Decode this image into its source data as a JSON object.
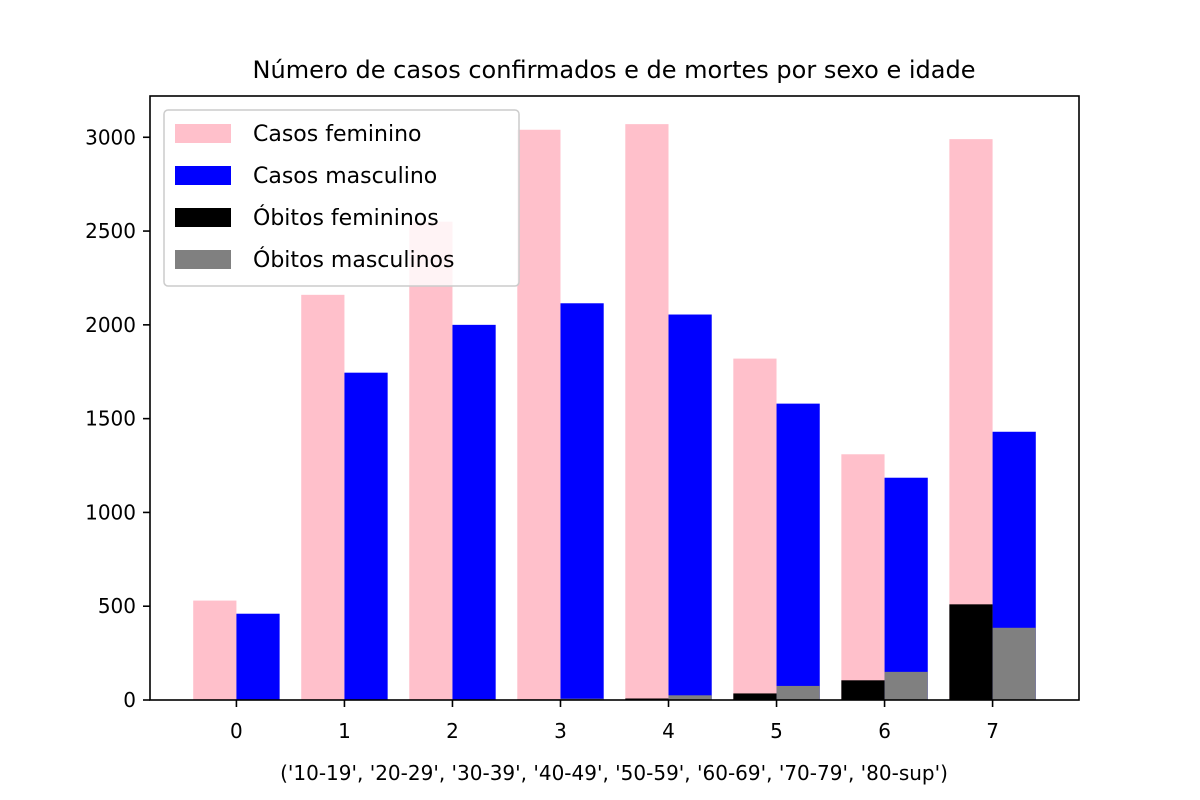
{
  "chart_data": {
    "type": "bar",
    "title": "Número de casos confirmados e de mortes por sexo e idade",
    "xlabel": "('10-19', '20-29', '30-39', '40-49', '50-59', '60-69', '70-79', '80-sup')",
    "ylabel": "",
    "categories": [
      "0",
      "1",
      "2",
      "3",
      "4",
      "5",
      "6",
      "7"
    ],
    "yticks": [
      "0",
      "500",
      "1000",
      "1500",
      "2000",
      "2500",
      "3000"
    ],
    "ytick_values": [
      0,
      500,
      1000,
      1500,
      2000,
      2500,
      3000
    ],
    "ylim": [
      0,
      3220
    ],
    "xlim": [
      -0.8,
      7.8
    ],
    "grid": false,
    "legend_position": "top-left",
    "series": [
      {
        "name": "Casos feminino",
        "color": "#ffc0cb",
        "offset": -0.2,
        "values": [
          530,
          2160,
          2550,
          3040,
          3070,
          1820,
          1310,
          2990
        ]
      },
      {
        "name": "Casos masculino",
        "color": "#0000ff",
        "offset": 0.2,
        "values": [
          460,
          1745,
          2000,
          2115,
          2055,
          1580,
          1185,
          1430
        ]
      },
      {
        "name": "Óbitos femininos",
        "color": "#000000",
        "offset": -0.2,
        "values": [
          0,
          0,
          1,
          3,
          8,
          35,
          105,
          510
        ]
      },
      {
        "name": "Óbitos masculinos",
        "color": "#808080",
        "offset": 0.2,
        "values": [
          0,
          1,
          2,
          7,
          25,
          75,
          150,
          385
        ]
      }
    ]
  }
}
